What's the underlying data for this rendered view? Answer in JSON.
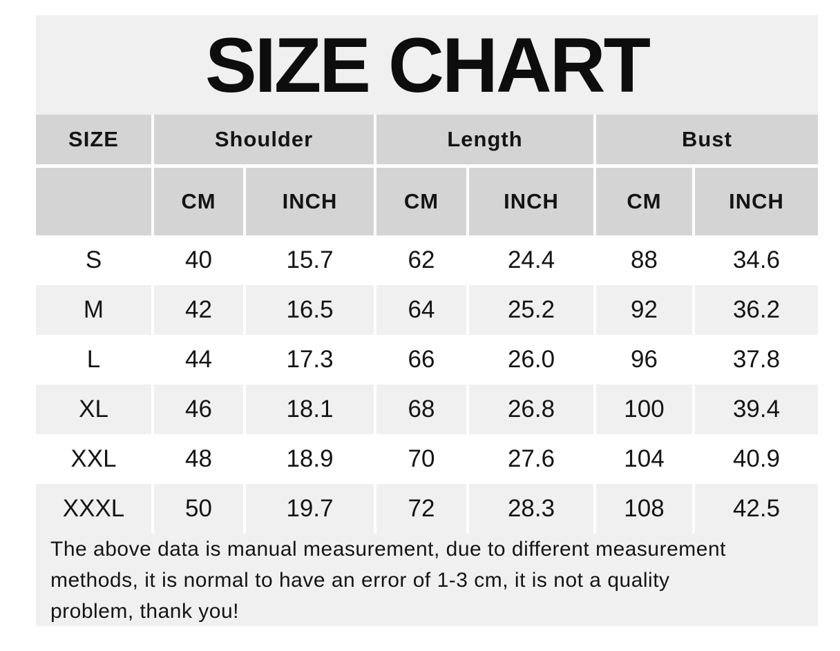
{
  "title": "SIZE CHART",
  "colors": {
    "page_bg": "#ffffff",
    "panel_bg": "#f0f0f0",
    "header_bg": "#d4d4d4",
    "row_alt_bg": "#f0f0f0",
    "text": "#141414"
  },
  "table": {
    "size_header": "SIZE",
    "group_headers": [
      "Shoulder",
      "Length",
      "Bust"
    ],
    "unit_headers": [
      "CM",
      "INCH",
      "CM",
      "INCH",
      "CM",
      "INCH"
    ],
    "rows": [
      {
        "size": "S",
        "values": [
          "40",
          "15.7",
          "62",
          "24.4",
          "88",
          "34.6"
        ]
      },
      {
        "size": "M",
        "values": [
          "42",
          "16.5",
          "64",
          "25.2",
          "92",
          "36.2"
        ]
      },
      {
        "size": "L",
        "values": [
          "44",
          "17.3",
          "66",
          "26.0",
          "96",
          "37.8"
        ]
      },
      {
        "size": "XL",
        "values": [
          "46",
          "18.1",
          "68",
          "26.8",
          "100",
          "39.4"
        ]
      },
      {
        "size": "XXL",
        "values": [
          "48",
          "18.9",
          "70",
          "27.6",
          "104",
          "40.9"
        ]
      },
      {
        "size": "XXXL",
        "values": [
          "50",
          "19.7",
          "72",
          "28.3",
          "108",
          "42.5"
        ]
      }
    ]
  },
  "note_lines": [
    "The above data is manual measurement, due to different measurement",
    "methods, it is normal to have an error of 1-3 cm, it is not a quality",
    "problem, thank you!"
  ],
  "chart_data": {
    "type": "table",
    "title": "SIZE CHART",
    "column_groups": [
      "Shoulder",
      "Length",
      "Bust"
    ],
    "columns": [
      "SIZE",
      "Shoulder CM",
      "Shoulder INCH",
      "Length CM",
      "Length INCH",
      "Bust CM",
      "Bust INCH"
    ],
    "rows": [
      [
        "S",
        40,
        15.7,
        62,
        24.4,
        88,
        34.6
      ],
      [
        "M",
        42,
        16.5,
        64,
        25.2,
        92,
        36.2
      ],
      [
        "L",
        44,
        17.3,
        66,
        26.0,
        96,
        37.8
      ],
      [
        "XL",
        46,
        18.1,
        68,
        26.8,
        100,
        39.4
      ],
      [
        "XXL",
        48,
        18.9,
        70,
        27.6,
        104,
        40.9
      ],
      [
        "XXXL",
        50,
        19.7,
        72,
        28.3,
        108,
        42.5
      ]
    ],
    "note": "The above data is manual measurement, due to different measurement methods, it is normal to have an error of 1-3 cm, it is not a quality problem, thank you!"
  }
}
